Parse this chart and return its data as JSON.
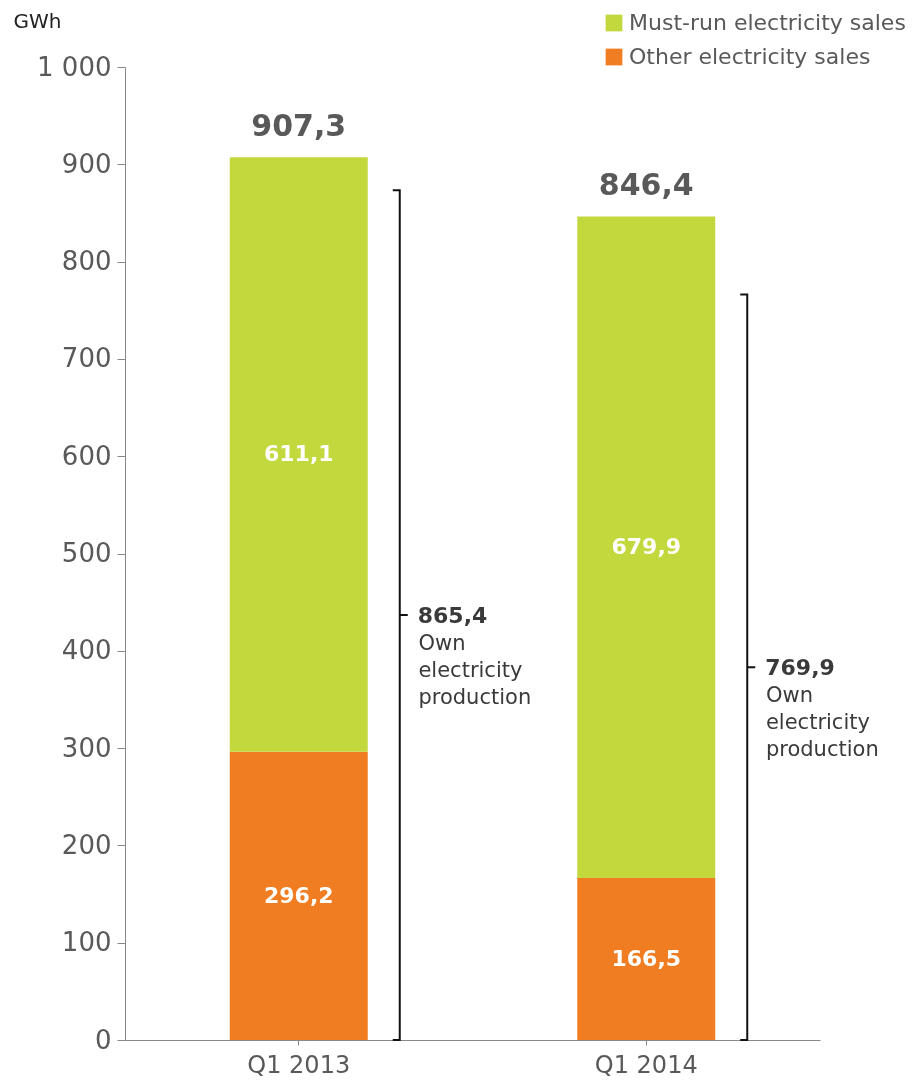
{
  "chart_data": {
    "type": "bar",
    "stacked": true,
    "ylabel": "GWh",
    "categories": [
      "Q1 2013",
      "Q1 2014"
    ],
    "series": [
      {
        "name": "Other electricity sales",
        "color": "#f07d22",
        "values": [
          296.2,
          166.5
        ],
        "value_labels": [
          "296,2",
          "166,5"
        ]
      },
      {
        "name": "Must-run electricity sales",
        "color": "#c3d83c",
        "values": [
          611.1,
          679.9
        ],
        "value_labels": [
          "611,1",
          "679,9"
        ]
      }
    ],
    "totals": [
      "907,3",
      "846,4"
    ],
    "ylim": [
      0,
      1000
    ],
    "yticks": [
      0,
      100,
      200,
      300,
      400,
      500,
      600,
      700,
      800,
      900,
      {
        "value": 1000,
        "label": "1 000"
      }
    ],
    "grid": false,
    "legend": "top right",
    "annotations": [
      "865,4\nOwn\nelectricity\nproduction",
      "769,9\nOwn\nelectricity\nproduction"
    ]
  }
}
